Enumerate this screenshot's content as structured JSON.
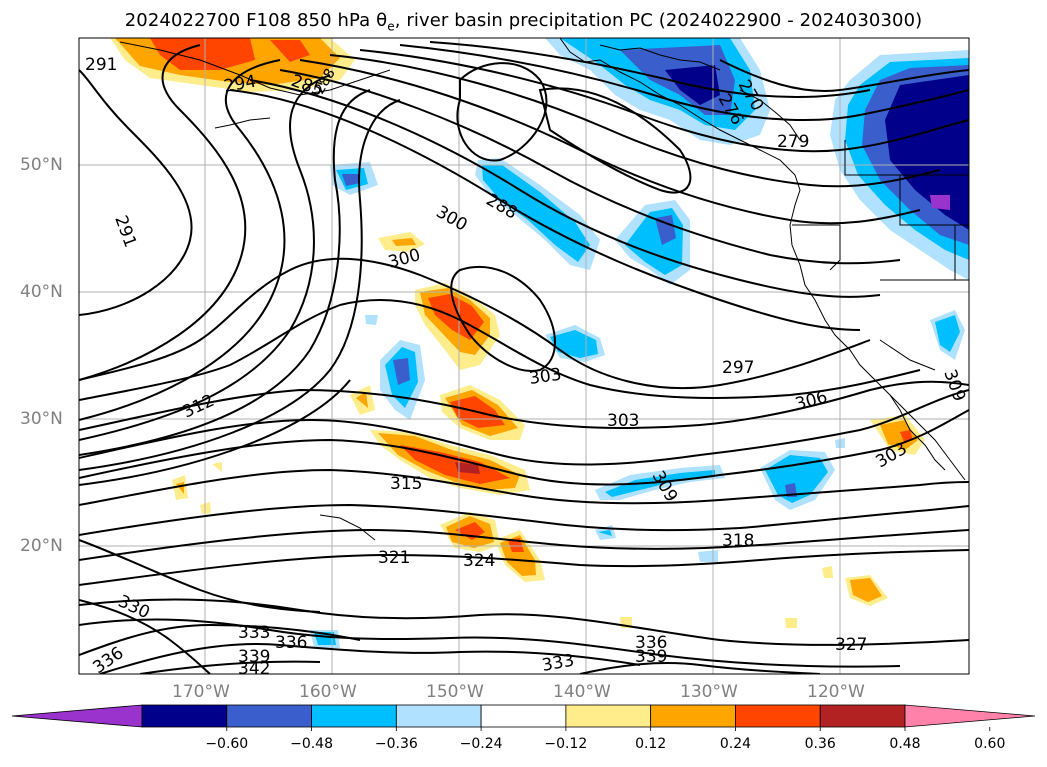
{
  "title_plain": "2024022700 F108 850 hPa θe, river basin precipitation PC (2024022900 - 2024030300)",
  "axes": {
    "lat_labels": [
      "50°N",
      "40°N",
      "30°N",
      "20°N"
    ],
    "lon_labels": [
      "170°W",
      "160°W",
      "150°W",
      "140°W",
      "130°W",
      "120°W"
    ]
  },
  "colorbar": {
    "colors": [
      "#9a32cd",
      "#00008b",
      "#3a5fcd",
      "#00bfff",
      "#b0e2ff",
      "#ffffff",
      "#ffec8b",
      "#ffa500",
      "#ff4500",
      "#b22222",
      "#ff82ab"
    ],
    "ticks": [
      "−0.60",
      "−0.48",
      "−0.36",
      "−0.24",
      "−0.12",
      "0.12",
      "0.24",
      "0.36",
      "0.48",
      "0.60"
    ]
  },
  "contour_labels": [
    "291",
    "294",
    "285",
    "288",
    "276",
    "270",
    "279",
    "300",
    "291",
    "288",
    "300",
    "297",
    "303",
    "306",
    "309",
    "303",
    "303",
    "312",
    "315",
    "309",
    "318",
    "321",
    "324",
    "330",
    "333",
    "336",
    "336",
    "339",
    "342",
    "333",
    "336",
    "339",
    "327"
  ],
  "chart_data": {
    "type": "heatmap",
    "title": "2024022700 F108 850 hPa θe, river basin precipitation PC (2024022900 - 2024030300)",
    "field": "850 hPa equivalent potential temperature (contours) and river basin precipitation PC (shaded)",
    "domain": {
      "lon_range": [
        "176°W",
        "106°W"
      ],
      "lat_range": [
        "10°N",
        "60°N"
      ]
    },
    "lat_ticks": [
      "50°N",
      "40°N",
      "30°N",
      "20°N"
    ],
    "lon_ticks": [
      "170°W",
      "160°W",
      "150°W",
      "140°W",
      "130°W",
      "120°W"
    ],
    "colorbar_levels": [
      -0.6,
      -0.48,
      -0.36,
      -0.24,
      -0.12,
      0.12,
      0.24,
      0.36,
      0.48,
      0.6
    ],
    "contour_values": [
      270,
      276,
      279,
      285,
      288,
      291,
      294,
      297,
      300,
      303,
      306,
      309,
      312,
      315,
      318,
      321,
      324,
      327,
      330,
      333,
      336,
      339,
      342
    ],
    "grid": true
  }
}
